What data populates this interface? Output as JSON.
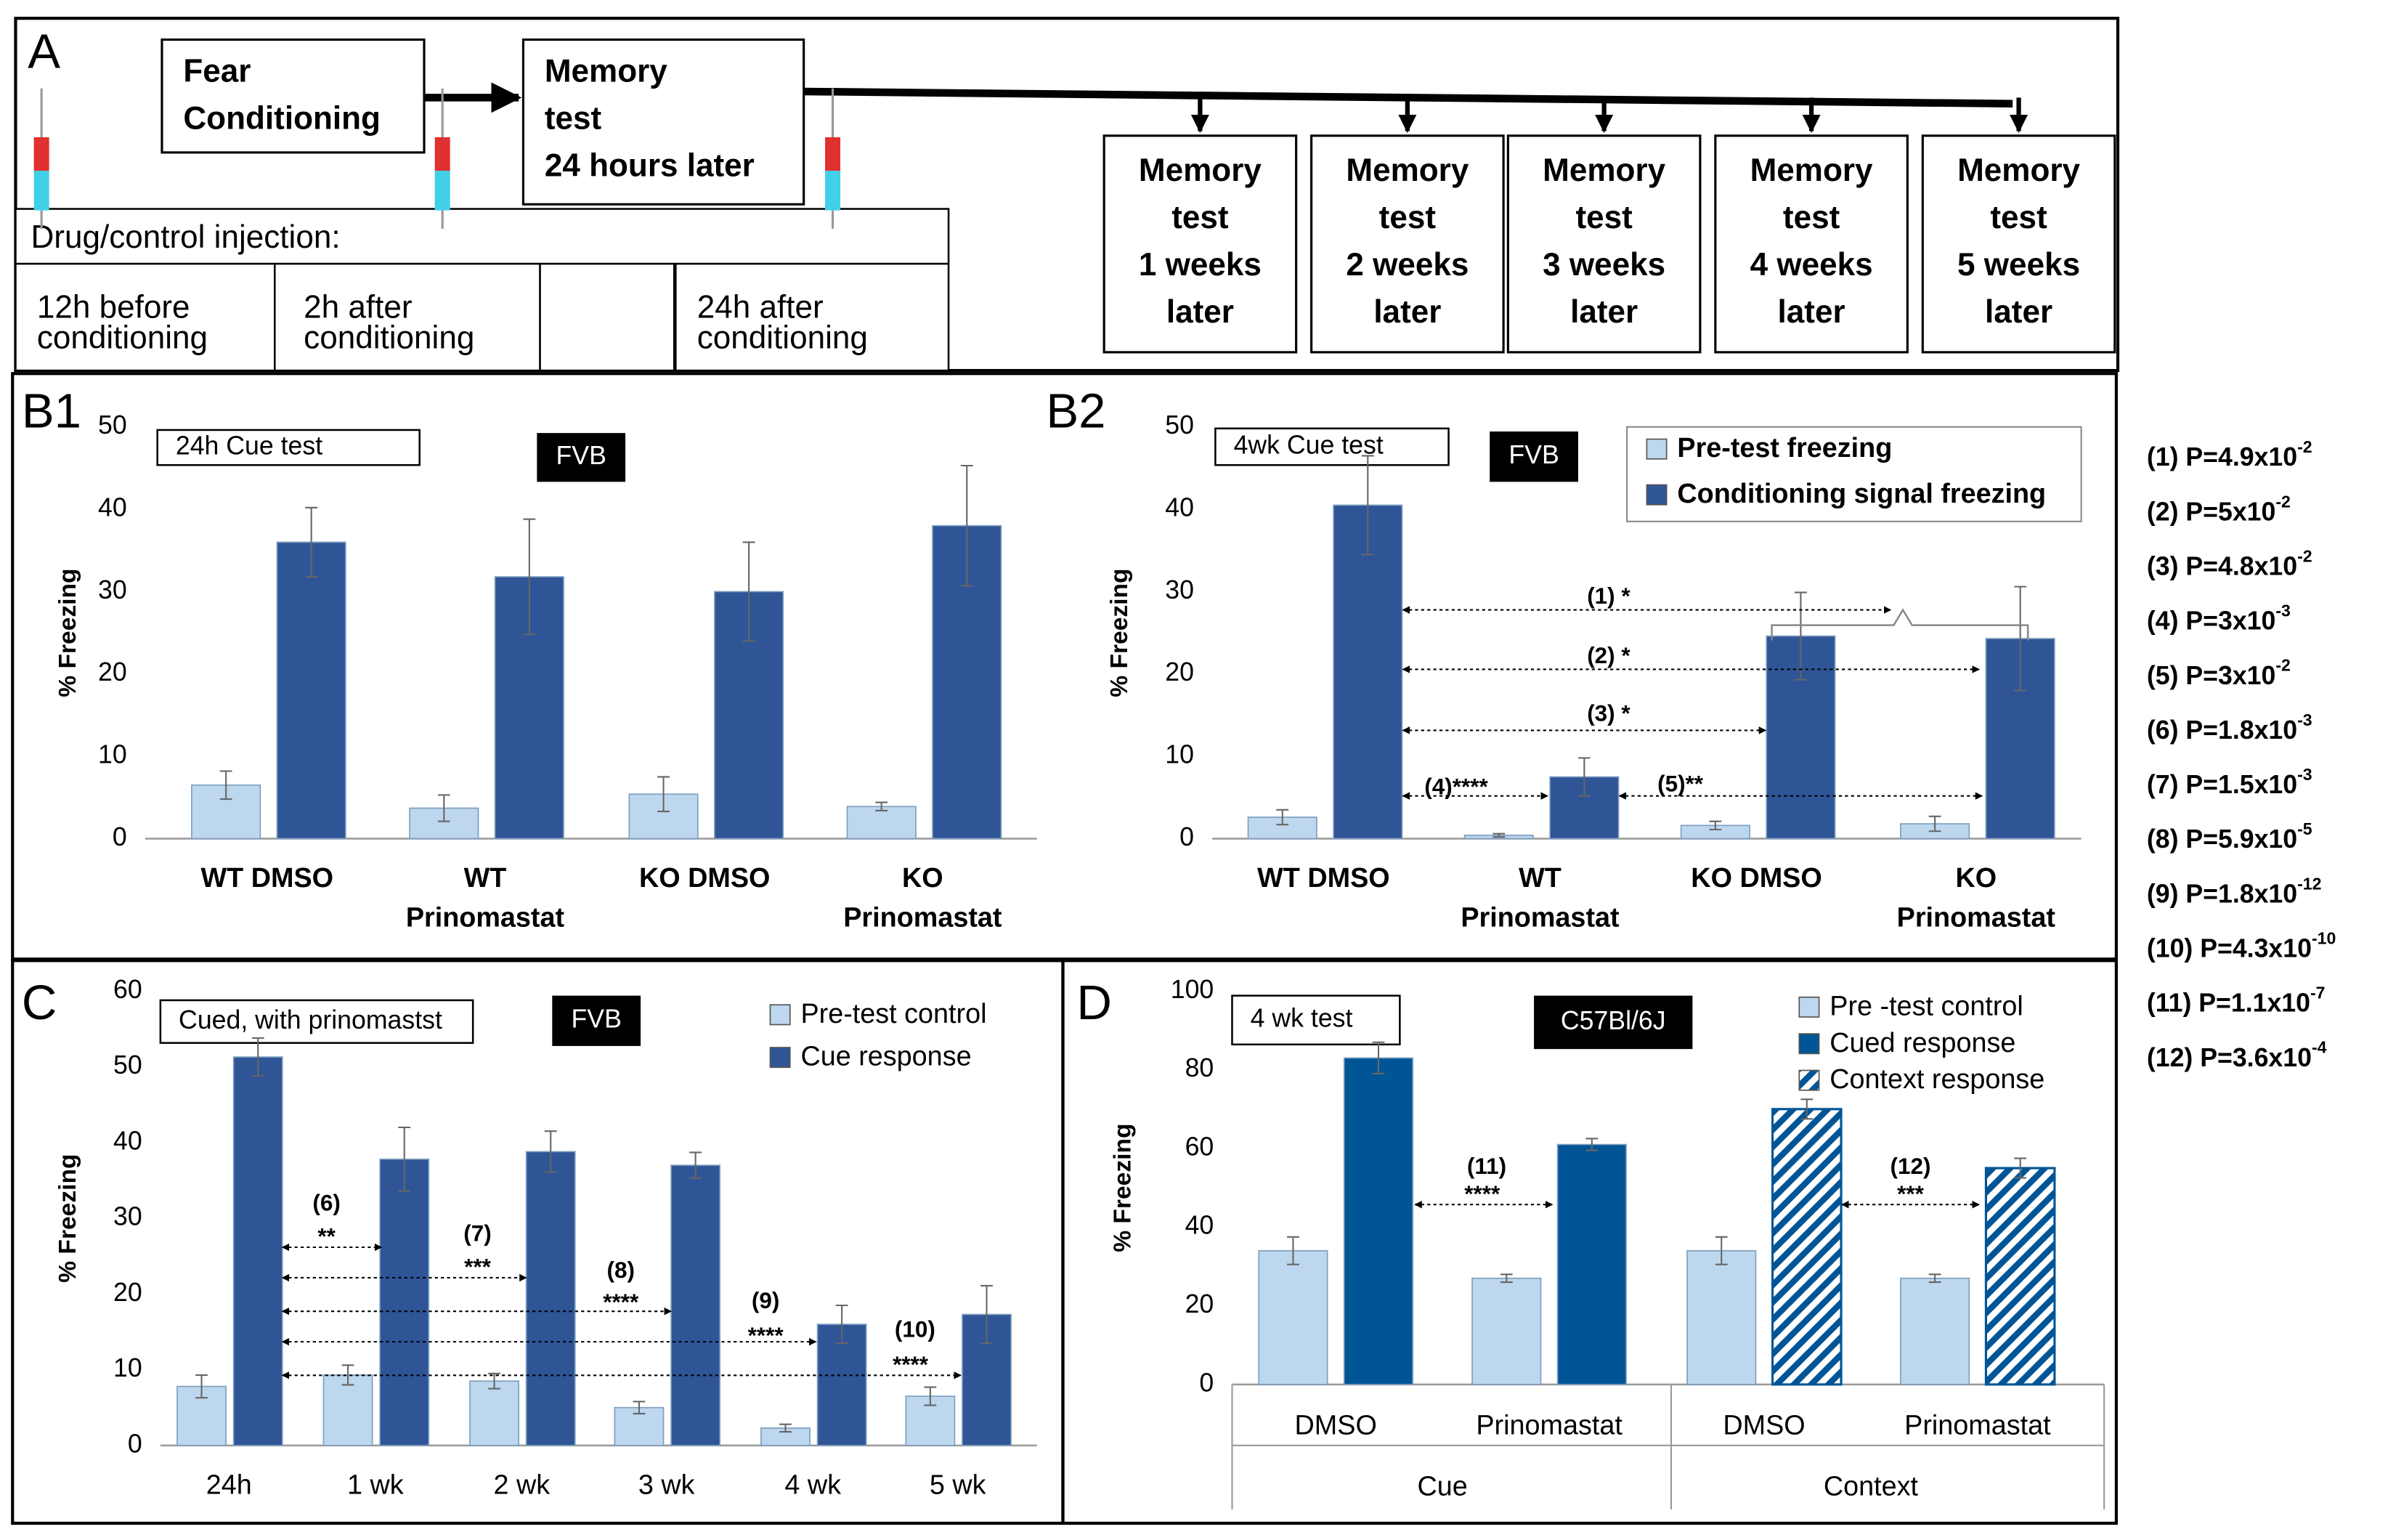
{
  "panel_a": {
    "label": "A",
    "conditioning": [
      "Fear",
      "Conditioning"
    ],
    "test_24h": [
      "Memory",
      "test",
      "24 hours later"
    ],
    "injection": "Drug/control injection:",
    "timings": [
      [
        "12h before",
        "conditioning"
      ],
      [
        "2h after",
        "conditioning"
      ],
      [
        "24h after",
        "conditioning"
      ]
    ],
    "later_tests": [
      [
        "Memory",
        "test",
        "1 weeks",
        "later"
      ],
      [
        "Memory",
        "test",
        "2 weeks",
        "later"
      ],
      [
        "Memory",
        "test",
        "3 weeks",
        "later"
      ],
      [
        "Memory",
        "test",
        "4 weeks",
        "later"
      ],
      [
        "Memory",
        "test",
        "5 weeks",
        "later"
      ]
    ]
  },
  "chart_data": [
    {
      "type": "bar",
      "panel": "B1",
      "title": "24h Cue test",
      "strain": "FVB",
      "ylabel": "% Freezing",
      "categories": [
        [
          "WT DMSO"
        ],
        [
          "WT",
          "Prinomastat"
        ],
        [
          "KO DMSO"
        ],
        [
          "KO",
          "Prinomastat"
        ]
      ],
      "series": [
        {
          "color": "#bdd7ee",
          "values": [
            6.5,
            3.7,
            5.4,
            3.9
          ],
          "errors": [
            1.7,
            1.6,
            2.1,
            0.5
          ]
        },
        {
          "color": "#2f5597",
          "values": [
            36,
            31.8,
            30,
            38
          ],
          "errors": [
            4.2,
            7,
            6,
            7.3
          ]
        }
      ],
      "ylim": [
        0,
        50
      ],
      "yticks": [
        0,
        10,
        20,
        30,
        40,
        50
      ]
    },
    {
      "type": "bar",
      "panel": "B2",
      "title": "4wk Cue test",
      "strain": "FVB",
      "ylabel": "% Freezing",
      "categories": [
        [
          "WT DMSO"
        ],
        [
          "WT",
          "Prinomastat"
        ],
        [
          "KO DMSO"
        ],
        [
          "KO",
          "Prinomastat"
        ]
      ],
      "series": [
        {
          "name": "Pre-test freezing",
          "color": "#bdd7ee",
          "values": [
            2.6,
            0.4,
            1.6,
            1.8
          ],
          "errors": [
            0.9,
            0.2,
            0.5,
            0.9
          ]
        },
        {
          "name": "Conditioning signal freezing",
          "color": "#2f5597",
          "values": [
            40.5,
            7.5,
            24.6,
            24.3
          ],
          "errors": [
            6,
            2.3,
            5.3,
            6.3
          ]
        }
      ],
      "ylim": [
        0,
        50
      ],
      "yticks": [
        0,
        10,
        20,
        30,
        40,
        50
      ],
      "annotations": [
        "(1) *",
        "(2) *",
        "(3) *",
        "(4)****",
        "(5)**"
      ]
    },
    {
      "type": "bar",
      "panel": "C",
      "title": "Cued, with prinomastst",
      "strain": "FVB",
      "ylabel": "% Freezing",
      "categories": [
        [
          "24h"
        ],
        [
          "1 wk"
        ],
        [
          "2 wk"
        ],
        [
          "3 wk"
        ],
        [
          "4 wk"
        ],
        [
          "5 wk"
        ]
      ],
      "series": [
        {
          "name": "Pre-test control",
          "color": "#bdd7ee",
          "values": [
            7.8,
            9.3,
            8.5,
            5,
            2.3,
            6.5
          ],
          "errors": [
            1.5,
            1.3,
            1,
            0.8,
            0.5,
            1.2
          ]
        },
        {
          "name": "Cue response",
          "color": "#2f5597",
          "values": [
            51.3,
            37.8,
            38.8,
            37,
            16,
            17.3
          ],
          "errors": [
            2.5,
            4.2,
            2.7,
            1.7,
            2.5,
            3.8
          ]
        }
      ],
      "ylim": [
        0,
        60
      ],
      "yticks": [
        0,
        10,
        20,
        30,
        40,
        50,
        60
      ],
      "annotations": [
        "(6)",
        "**",
        "(7)",
        "***",
        "(8)",
        "****",
        "(9)",
        "****",
        "(10)",
        "****"
      ]
    },
    {
      "type": "bar",
      "panel": "D",
      "title": "4 wk test",
      "strain": "C57Bl/6J",
      "ylabel": "% Freezing",
      "categories": [
        [
          "DMSO"
        ],
        [
          "Prinomastat"
        ],
        [
          "DMSO"
        ],
        [
          "Prinomastat"
        ]
      ],
      "groups": [
        "Cue",
        "Context"
      ],
      "series": [
        {
          "name": "Pre -test control",
          "color": "#bdd7ee",
          "values": [
            34,
            27,
            34,
            27
          ],
          "errors": [
            3.5,
            1,
            3.5,
            1
          ]
        },
        {
          "name": "Cued response",
          "color": "#005596",
          "values": [
            83,
            61,
            null,
            null
          ],
          "errors": [
            4,
            1.5,
            null,
            null
          ]
        },
        {
          "name": "Context response",
          "color": "#005596",
          "hatch": true,
          "values": [
            null,
            null,
            70,
            55
          ],
          "errors": [
            null,
            null,
            2.5,
            2.5
          ]
        }
      ],
      "ylim": [
        0,
        100
      ],
      "yticks": [
        0,
        20,
        40,
        60,
        80,
        100
      ],
      "annotations": [
        "(11)",
        "****",
        "(12)",
        "***"
      ]
    }
  ],
  "p_values": [
    {
      "text": "(1) P=4.9x10",
      "exp": "-2"
    },
    {
      "text": "(2) P=5x10",
      "exp": "-2"
    },
    {
      "text": "(3) P=4.8x10",
      "exp": "-2"
    },
    {
      "text": "(4) P=3x10",
      "exp": "-3"
    },
    {
      "text": "(5) P=3x10",
      "exp": "-2"
    },
    {
      "text": "(6) P=1.8x10",
      "exp": "-3"
    },
    {
      "text": "(7) P=1.5x10",
      "exp": "-3"
    },
    {
      "text": "(8) P=5.9x10",
      "exp": "-5"
    },
    {
      "text": "(9) P=1.8x10",
      "exp": "-12"
    },
    {
      "text": "(10) P=4.3x10",
      "exp": "-10"
    },
    {
      "text": "(11) P=1.1x10",
      "exp": "-7"
    },
    {
      "text": "(12) P=3.6x10",
      "exp": "-4"
    }
  ]
}
